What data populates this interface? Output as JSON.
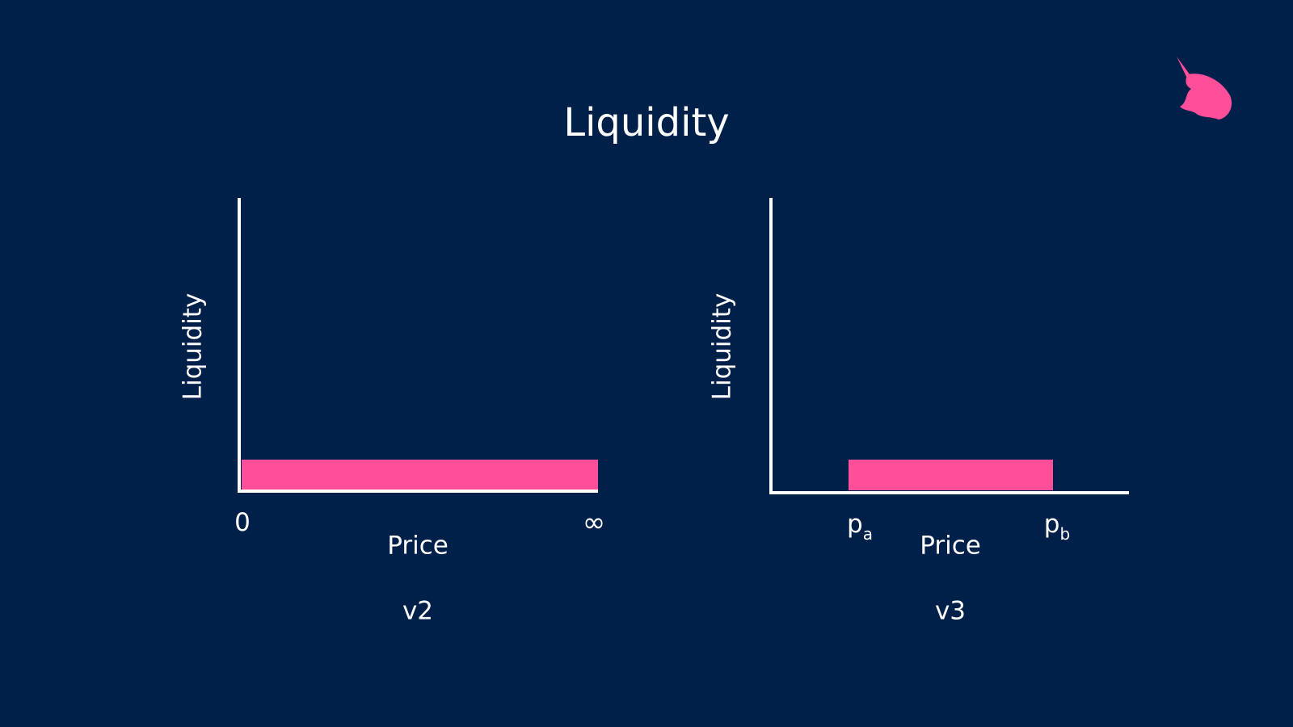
{
  "title": "Liquidity",
  "panels": [
    {
      "y_label": "Liquidity",
      "x_label": "Price",
      "ticks": [
        {
          "base": "0"
        },
        {
          "base": "∞"
        }
      ],
      "caption": "v2"
    },
    {
      "y_label": "Liquidity",
      "x_label": "Price",
      "ticks": [
        {
          "base": "p",
          "sub": "a"
        },
        {
          "base": "p",
          "sub": "b"
        }
      ],
      "caption": "v3"
    }
  ]
}
